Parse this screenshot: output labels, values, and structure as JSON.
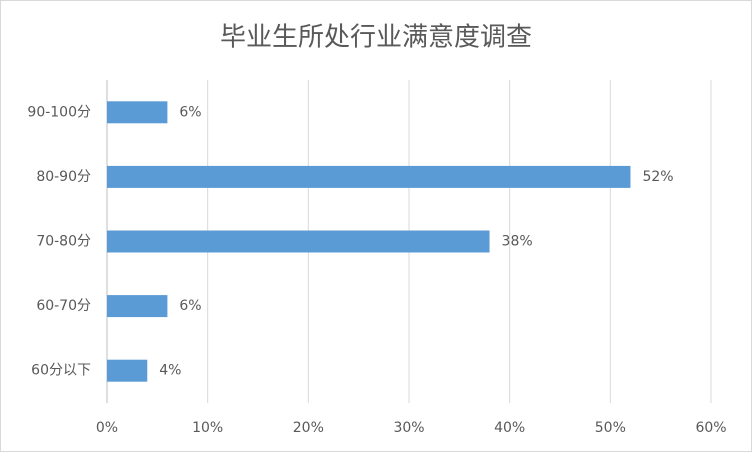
{
  "chart_data": {
    "type": "bar",
    "title": "毕业生所处行业满意度调查",
    "categories": [
      "90-100分",
      "80-90分",
      "70-80分",
      "60-70分",
      "60分以下"
    ],
    "values": [
      6,
      52,
      38,
      6,
      4
    ],
    "value_labels": [
      "6%",
      "52%",
      "38%",
      "6%",
      "4%"
    ],
    "color": "#5b9bd5",
    "xlim": [
      0,
      60
    ],
    "xticks": [
      {
        "value": 0,
        "label": "0%"
      },
      {
        "value": 10,
        "label": "10%"
      },
      {
        "value": 20,
        "label": "20%"
      },
      {
        "value": 30,
        "label": "30%"
      },
      {
        "value": 40,
        "label": "40%"
      },
      {
        "value": 50,
        "label": "50%"
      },
      {
        "value": 60,
        "label": "60%"
      }
    ],
    "grid": true
  }
}
